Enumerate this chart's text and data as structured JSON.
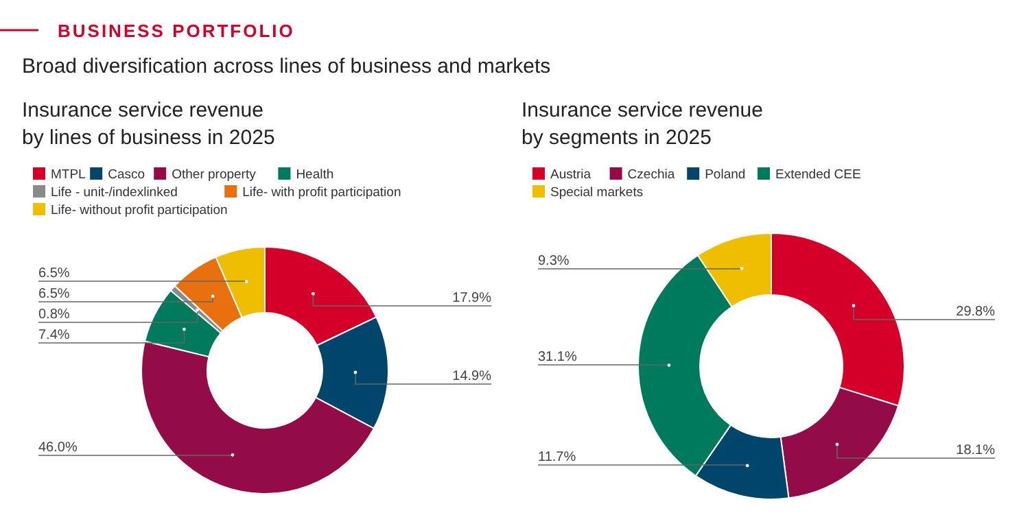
{
  "chart_data": [
    {
      "type": "donut",
      "annotations": [
        "BUSINESS PORTFOLIO",
        "Broad diversification across lines of business and markets"
      ],
      "title": "Insurance service revenue\nby lines of business in 2025",
      "legend": "top left",
      "categories": [
        "MTPL",
        "Casco",
        "Other property",
        "Health",
        "Life - unit-/indexlinked",
        "Life- with profit participation",
        "Life- without profit participation"
      ],
      "values": [
        17.9,
        14.9,
        46.0,
        7.4,
        0.8,
        6.5,
        6.5
      ],
      "value_labels": [
        "17.9%",
        "14.9%",
        "46.0%",
        "7.4%",
        "0.8%",
        "6.5%",
        "6.5%"
      ],
      "colors": [
        "#d4002a",
        "#00456c",
        "#930b47",
        "#007a5c",
        "#8a8a8a",
        "#e8700e",
        "#f0be00"
      ]
    },
    {
      "type": "donut",
      "title": "Insurance service revenue\nby segments in 2025",
      "legend": "top left",
      "categories": [
        "Austria",
        "Czechia",
        "Poland",
        "Extended CEE",
        "Special markets"
      ],
      "values": [
        29.8,
        18.1,
        11.7,
        31.1,
        9.3
      ],
      "value_labels": [
        "29.8%",
        "18.1%",
        "11.7%",
        "31.1%",
        "9.3%"
      ],
      "colors": [
        "#d4002a",
        "#930b47",
        "#00456c",
        "#007a5c",
        "#f0be00"
      ]
    }
  ]
}
